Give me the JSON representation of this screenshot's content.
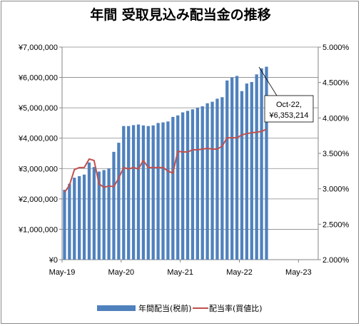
{
  "chart_data": {
    "type": "bar+line",
    "title": "年間 受取見込み配当金の推移",
    "x_ticks": [
      "May-19",
      "May-20",
      "May-21",
      "May-22",
      "May-23"
    ],
    "y_left_ticks": [
      "¥0",
      "¥1,000,000",
      "¥2,000,000",
      "¥3,000,000",
      "¥4,000,000",
      "¥5,000,000",
      "¥6,000,000",
      "¥7,000,000"
    ],
    "y_right_ticks": [
      "2.000%",
      "2.500%",
      "3.000%",
      "3.500%",
      "4.000%",
      "4.500%",
      "5.000%"
    ],
    "ylim_left": [
      0,
      7000000
    ],
    "ylim_right": [
      2.0,
      5.0
    ],
    "x_range": [
      "2019-05",
      "2023-09"
    ],
    "grid": "horizontal",
    "legend_position": "bottom",
    "colors": {
      "bar": "#4f81bd",
      "line": "#c0504d"
    },
    "series": [
      {
        "name": "年間配当(税前)",
        "kind": "bar",
        "axis": "left",
        "x": [
          "2019-05",
          "2019-06",
          "2019-07",
          "2019-08",
          "2019-09",
          "2019-10",
          "2019-11",
          "2019-12",
          "2020-01",
          "2020-02",
          "2020-03",
          "2020-04",
          "2020-05",
          "2020-06",
          "2020-07",
          "2020-08",
          "2020-09",
          "2020-10",
          "2020-11",
          "2020-12",
          "2021-01",
          "2021-02",
          "2021-03",
          "2021-04",
          "2021-05",
          "2021-06",
          "2021-07",
          "2021-08",
          "2021-09",
          "2021-10",
          "2021-11",
          "2021-12",
          "2022-01",
          "2022-02",
          "2022-03",
          "2022-04",
          "2022-05",
          "2022-06",
          "2022-07",
          "2022-08",
          "2022-09",
          "2022-10"
        ],
        "values": [
          2300000,
          2500000,
          2700000,
          2750000,
          2800000,
          3200000,
          3050000,
          2900000,
          2950000,
          3000000,
          3550000,
          3850000,
          4400000,
          4400000,
          4430000,
          4450000,
          4420000,
          4400000,
          4420000,
          4500000,
          4520000,
          4550000,
          4700000,
          4750000,
          4850000,
          4900000,
          4950000,
          5000000,
          5050000,
          5150000,
          5200000,
          5300000,
          5350000,
          5900000,
          6000000,
          6050000,
          5550000,
          5800000,
          5850000,
          6100000,
          6300000,
          6353214
        ]
      },
      {
        "name": "配当率(買値比)",
        "kind": "line",
        "axis": "right",
        "x": [
          "2019-05",
          "2019-06",
          "2019-07",
          "2019-08",
          "2019-09",
          "2019-10",
          "2019-11",
          "2019-12",
          "2020-01",
          "2020-02",
          "2020-03",
          "2020-04",
          "2020-05",
          "2020-06",
          "2020-07",
          "2020-08",
          "2020-09",
          "2020-10",
          "2020-11",
          "2020-12",
          "2021-01",
          "2021-02",
          "2021-03",
          "2021-04",
          "2021-05",
          "2021-06",
          "2021-07",
          "2021-08",
          "2021-09",
          "2021-10",
          "2021-11",
          "2021-12",
          "2022-01",
          "2022-02",
          "2022-03",
          "2022-04",
          "2022-05",
          "2022-06",
          "2022-07",
          "2022-08",
          "2022-09",
          "2022-10"
        ],
        "values": [
          2.95,
          3.05,
          3.27,
          3.3,
          3.3,
          3.42,
          3.4,
          3.07,
          3.02,
          3.04,
          3.03,
          3.15,
          3.3,
          3.28,
          3.3,
          3.28,
          3.4,
          3.3,
          3.3,
          3.3,
          3.3,
          3.25,
          3.22,
          3.53,
          3.52,
          3.52,
          3.55,
          3.55,
          3.56,
          3.57,
          3.56,
          3.56,
          3.6,
          3.72,
          3.72,
          3.72,
          3.76,
          3.78,
          3.79,
          3.8,
          3.81,
          3.84
        ]
      }
    ],
    "annotation": {
      "line1": "Oct-22,",
      "line2": "¥6,353,214"
    }
  }
}
